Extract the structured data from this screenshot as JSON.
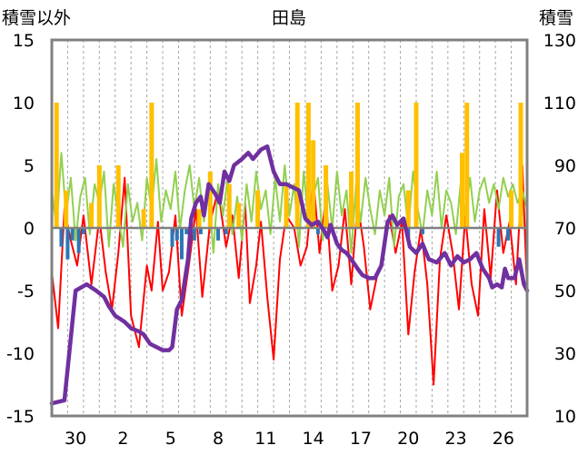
{
  "chart_data": {
    "type": "line",
    "title": "田島",
    "ylabel_left": "積雪以外",
    "ylabel_right": "積雪",
    "ylim_left": [
      -15,
      15
    ],
    "ylim_right": [
      10,
      130
    ],
    "yticks_left": [
      "15",
      "10",
      "5",
      "0",
      "-5",
      "-10",
      "-15"
    ],
    "yticks_right": [
      "130",
      "110",
      "90",
      "70",
      "50",
      "30",
      "10"
    ],
    "xtick_labels": [
      "30",
      "2",
      "5",
      "8",
      "11",
      "14",
      "17",
      "20",
      "23",
      "26"
    ],
    "x_range_days": [
      0,
      30
    ],
    "xtick_positions_days": [
      2,
      5,
      8,
      11,
      14,
      17,
      20,
      23,
      26,
      29
    ],
    "grid": "vertical dashed daily",
    "colors": {
      "temperature": "#ff0000",
      "wind": "#92d050",
      "precipitation": "#ffc000",
      "snow_change": "#2e75b6",
      "snow_depth": "#7030a0",
      "frame": "#808080"
    },
    "series": [
      {
        "key": "snow_depth",
        "axis": "right",
        "x": [
          0,
          0.8,
          1.1,
          1.5,
          2.2,
          2.8,
          3.3,
          3.6,
          4.0,
          4.3,
          4.6,
          5.0,
          5.5,
          5.8,
          6.2,
          6.6,
          7.0,
          7.4,
          7.6,
          7.9,
          8.2,
          8.6,
          8.8,
          9.1,
          9.4,
          9.6,
          9.9,
          10.3,
          10.6,
          10.9,
          11.2,
          11.5,
          12.0,
          12.4,
          12.7,
          13.2,
          13.6,
          14.0,
          14.4,
          14.8,
          15.2,
          15.6,
          16.0,
          16.4,
          16.8,
          17.2,
          17.4,
          17.6,
          18.0,
          18.3,
          18.6,
          18.9,
          19.3,
          19.6,
          20.0,
          20.4,
          20.8,
          21.2,
          21.5,
          21.8,
          22.2,
          22.6,
          23.0,
          23.4,
          23.8,
          24.3,
          24.8,
          25.2,
          25.6,
          26.0,
          26.4,
          26.8,
          27.2,
          27.6,
          27.8,
          28.1,
          28.4,
          28.6,
          28.8,
          29.2,
          29.5,
          29.8,
          30.0
        ],
        "values": [
          14,
          15,
          30,
          50,
          52,
          50,
          48,
          45,
          42,
          41,
          40,
          38,
          37,
          36,
          33,
          32,
          31,
          31,
          32,
          44,
          47,
          60,
          73,
          78,
          80,
          74,
          84,
          81,
          78,
          88,
          85,
          90,
          92,
          94,
          92,
          95,
          96,
          88,
          84,
          84,
          83,
          82,
          73,
          71,
          72,
          69,
          67,
          71,
          65,
          63,
          62,
          60,
          57,
          55,
          54,
          54,
          58,
          72,
          74,
          71,
          73,
          64,
          62,
          65,
          60,
          59,
          62,
          58,
          61,
          59,
          60,
          62,
          57,
          54,
          51,
          52,
          51,
          57,
          54,
          54,
          60,
          52,
          50
        ]
      },
      {
        "key": "temperature",
        "axis": "left",
        "x": [
          0,
          0.4,
          0.8,
          1.2,
          1.6,
          2.0,
          2.5,
          3.0,
          3.4,
          3.8,
          4.2,
          4.6,
          5.0,
          5.5,
          6.0,
          6.3,
          6.7,
          7.0,
          7.4,
          7.8,
          8.2,
          8.7,
          9.1,
          9.5,
          10.0,
          10.5,
          11.0,
          11.4,
          11.8,
          12.2,
          12.5,
          12.9,
          13.2,
          13.6,
          14.0,
          14.4,
          14.8,
          15.3,
          15.7,
          16.1,
          16.5,
          16.9,
          17.3,
          17.7,
          18.1,
          18.5,
          18.9,
          19.3,
          19.7,
          20.1,
          20.5,
          20.9,
          21.3,
          21.7,
          22.1,
          22.5,
          22.9,
          23.3,
          23.7,
          24.1,
          24.5,
          24.9,
          25.3,
          25.7,
          26.1,
          26.5,
          26.9,
          27.3,
          27.7,
          28.1,
          28.5,
          28.9,
          29.3,
          29.7,
          30.0
        ],
        "values": [
          -3.5,
          -8.0,
          1.5,
          -1.0,
          -3.0,
          1.0,
          -4.5,
          0.8,
          -3.5,
          -6.5,
          -2.0,
          4.0,
          -7.0,
          -9.5,
          -3.0,
          -5.0,
          0.5,
          -5.0,
          -3.5,
          1.0,
          -7.0,
          -2.5,
          1.5,
          -5.5,
          0.5,
          3.0,
          -1.5,
          1.0,
          -4.0,
          2.0,
          -6.0,
          -3.0,
          0.5,
          -5.5,
          -10.5,
          -2.5,
          1.0,
          0.0,
          -3.0,
          -1.5,
          4.0,
          -2.0,
          2.5,
          -5.0,
          -3.0,
          1.5,
          -4.5,
          2.0,
          -1.5,
          -6.5,
          -4.0,
          -2.5,
          1.0,
          -2.0,
          0.5,
          -8.5,
          -3.5,
          0.0,
          -4.5,
          -12.5,
          -2.5,
          1.0,
          -2.0,
          -6.5,
          1.0,
          -4.5,
          -7.0,
          1.5,
          -4.0,
          3.0,
          -2.0,
          0.5,
          -4.5,
          5.0,
          -5.0
        ]
      },
      {
        "key": "wind",
        "axis": "left",
        "x": [
          0,
          0.3,
          0.6,
          0.9,
          1.2,
          1.5,
          1.8,
          2.1,
          2.4,
          2.7,
          3.0,
          3.3,
          3.6,
          3.9,
          4.2,
          4.5,
          4.8,
          5.1,
          5.4,
          5.7,
          6.0,
          6.3,
          6.6,
          6.9,
          7.2,
          7.5,
          7.8,
          8.1,
          8.4,
          8.7,
          9.0,
          9.3,
          9.6,
          9.9,
          10.2,
          10.5,
          10.8,
          11.1,
          11.4,
          11.7,
          12.0,
          12.3,
          12.6,
          12.9,
          13.2,
          13.5,
          13.8,
          14.1,
          14.4,
          14.7,
          15.0,
          15.3,
          15.6,
          15.9,
          16.2,
          16.5,
          16.8,
          17.1,
          17.4,
          17.7,
          18.0,
          18.3,
          18.6,
          18.9,
          19.2,
          19.5,
          19.8,
          20.1,
          20.4,
          20.7,
          21.0,
          21.3,
          21.6,
          21.9,
          22.2,
          22.5,
          22.8,
          23.1,
          23.4,
          23.7,
          24.0,
          24.3,
          24.6,
          24.9,
          25.2,
          25.5,
          25.8,
          26.1,
          26.4,
          26.7,
          27.0,
          27.3,
          27.6,
          27.9,
          28.2,
          28.5,
          28.8,
          29.1,
          29.4,
          29.7,
          30.0
        ],
        "values": [
          3.0,
          0.0,
          6.0,
          1.0,
          4.0,
          -1.0,
          2.5,
          4.0,
          -0.5,
          3.5,
          2.0,
          4.5,
          -1.5,
          3.5,
          1.0,
          -1.5,
          3.5,
          0.5,
          2.0,
          -1.0,
          4.0,
          1.5,
          5.5,
          0.5,
          3.0,
          1.5,
          4.5,
          0.0,
          3.0,
          5.0,
          1.5,
          4.0,
          0.5,
          3.0,
          -2.0,
          3.5,
          1.0,
          4.0,
          -0.5,
          2.5,
          -1.0,
          3.5,
          0.5,
          4.5,
          1.5,
          3.0,
          -0.5,
          4.0,
          0.5,
          5.0,
          1.0,
          3.5,
          -1.5,
          4.5,
          0.5,
          2.5,
          4.0,
          -1.0,
          3.5,
          0.0,
          4.5,
          1.0,
          3.0,
          -2.0,
          3.5,
          0.5,
          4.0,
          1.5,
          -0.5,
          3.0,
          1.0,
          4.0,
          -1.5,
          2.5,
          3.5,
          0.0,
          4.5,
          1.5,
          -0.5,
          3.0,
          1.0,
          4.5,
          0.0,
          3.0,
          2.0,
          -0.5,
          3.5,
          1.0,
          4.0,
          0.5,
          3.0,
          4.0,
          2.0,
          3.5,
          1.5,
          4.0,
          2.5,
          3.5,
          2.0,
          3.0,
          1.5
        ]
      },
      {
        "key": "precipitation",
        "axis": "left",
        "bars": true,
        "x": [
          0.3,
          0.9,
          2.5,
          3.0,
          4.2,
          5.8,
          6.3,
          9.3,
          10.0,
          11.2,
          11.8,
          13.0,
          14.8,
          15.5,
          16.2,
          16.5,
          17.3,
          18.9,
          19.3,
          22.5,
          23.0,
          25.9,
          26.2,
          29.0,
          29.6
        ],
        "values": [
          10.0,
          3.0,
          2.0,
          5.0,
          5.0,
          1.5,
          10.0,
          1.5,
          4.5,
          3.5,
          2.0,
          3.0,
          3.5,
          10.0,
          10.0,
          7.0,
          5.0,
          4.5,
          10.0,
          3.0,
          10.0,
          6.0,
          10.0,
          3.0,
          10.0
        ]
      },
      {
        "key": "snow_change",
        "axis": "left",
        "bars": true,
        "x": [
          0.6,
          1.0,
          1.3,
          1.7,
          2.0,
          7.6,
          7.9,
          8.2,
          8.5,
          9.0,
          9.4,
          10.5,
          11.0,
          16.8,
          22.5,
          23.4,
          28.2,
          28.8
        ],
        "values": [
          -1.5,
          -2.5,
          -1.0,
          -2.0,
          -0.5,
          -1.5,
          -1.0,
          -2.5,
          -0.5,
          -1.0,
          -0.5,
          -1.0,
          -0.5,
          -0.5,
          -1.0,
          -0.5,
          -1.5,
          -1.0
        ]
      }
    ]
  }
}
